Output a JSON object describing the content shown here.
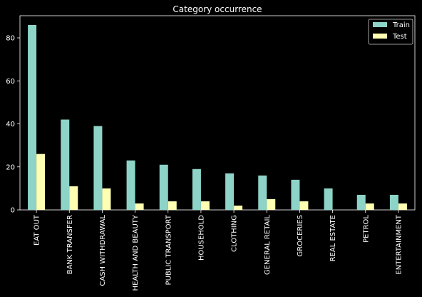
{
  "chart_data": {
    "type": "bar",
    "title": "Category occurrence",
    "xlabel": "",
    "ylabel": "",
    "categories": [
      "EAT OUT",
      "BANK TRANSFER",
      "CASH WITHDRAWAL",
      "HEALTH AND BEAUTY",
      "PUBLIC TRANSPORT",
      "HOUSEHOLD",
      "CLOTHING",
      "GENERAL RETAIL",
      "GROCERIES",
      "REAL ESTATE",
      "PETROL",
      "ENTERTAINMENT"
    ],
    "series": [
      {
        "name": "Train",
        "color": "#8dd3c7",
        "values": [
          86,
          42,
          39,
          23,
          21,
          19,
          17,
          16,
          14,
          10,
          7,
          7
        ]
      },
      {
        "name": "Test",
        "color": "#ffffb3",
        "values": [
          26,
          11,
          10,
          3,
          4,
          4,
          2,
          5,
          4,
          0,
          3,
          3
        ]
      }
    ],
    "ylim": [
      0,
      90.3
    ],
    "yticks": [
      0,
      20,
      40,
      60,
      80
    ],
    "grid": false,
    "legend_position": "top-right",
    "background": "#000000",
    "axis_color": "#ffffff"
  }
}
